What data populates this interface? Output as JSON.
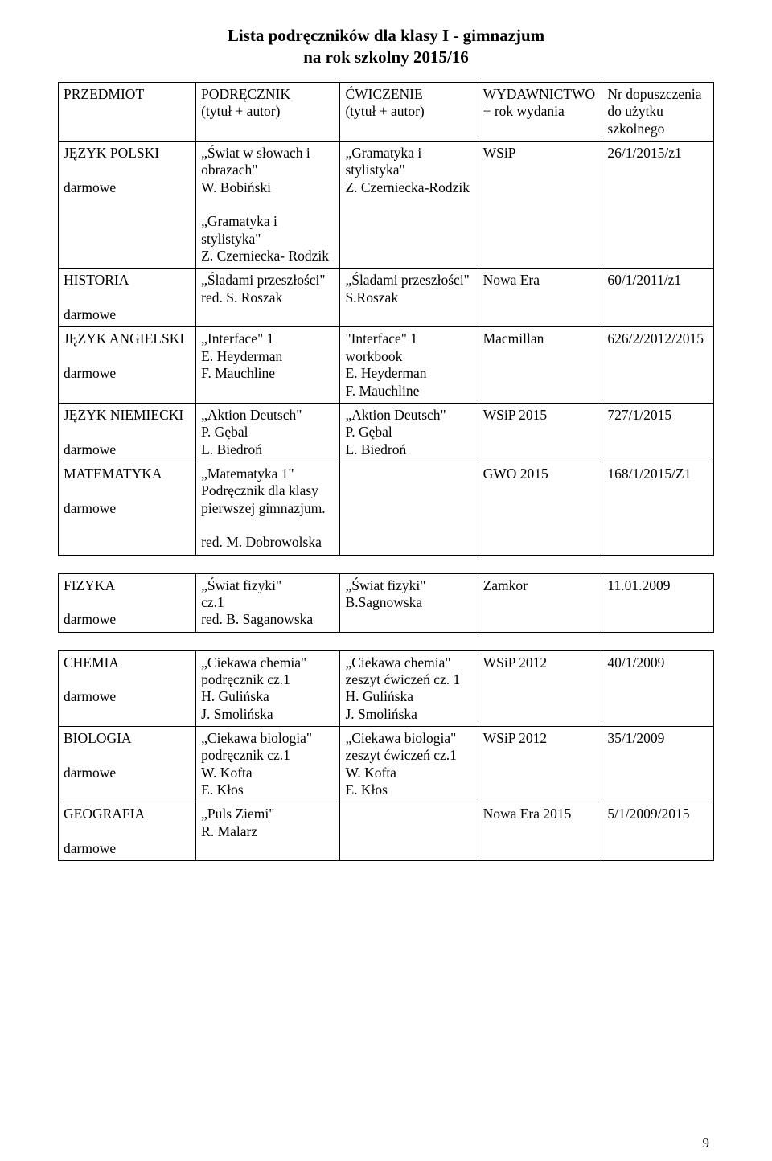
{
  "title": "Lista podręczników dla klasy I - gimnazjum",
  "subtitle": "na rok szkolny 2015/16",
  "page_number": "9",
  "headers": {
    "subject": "PRZEDMIOT",
    "textbook": "PODRĘCZNIK\n(tytuł + autor)",
    "workbook": "ĆWICZENIE\n(tytuł + autor)",
    "publisher": "WYDAWNICTWO\n+ rok wydania",
    "approval": "Nr dopuszczenia\ndo użytku\nszkolnego"
  },
  "rows": {
    "polski": {
      "subject": "JĘZYK POLSKI\n\ndarmowe",
      "textbook": "„Świat w słowach i obrazach\"\nW. Bobiński\n\n„Gramatyka i stylistyka\"\nZ. Czerniecka- Rodzik",
      "workbook": "„Gramatyka i stylistyka\"\nZ. Czerniecka-Rodzik",
      "publisher": "WSiP",
      "approval": "26/1/2015/z1"
    },
    "historia": {
      "subject": "HISTORIA\n\ndarmowe",
      "textbook": "„Śladami przeszłości\"\nred. S. Roszak",
      "workbook": "„Śladami przeszłości\"\nS.Roszak",
      "publisher": "Nowa Era",
      "approval": "60/1/2011/z1"
    },
    "angielski": {
      "subject": "JĘZYK ANGIELSKI\n\ndarmowe",
      "textbook": "„Interface\" 1\nE. Heyderman\nF. Mauchline",
      "workbook": "\"Interface\" 1 workbook\nE. Heyderman\nF. Mauchline",
      "publisher": "Macmillan",
      "approval": "626/2/2012/2015"
    },
    "niemiecki": {
      "subject": "JĘZYK NIEMIECKI\n\ndarmowe",
      "textbook": "„Aktion Deutsch\"\nP. Gębal\nL. Biedroń",
      "workbook": "„Aktion Deutsch\"\nP. Gębal\nL. Biedroń",
      "publisher": "WSiP 2015",
      "approval": "727/1/2015"
    },
    "matematyka": {
      "subject": "MATEMATYKA\n\ndarmowe",
      "textbook": "„Matematyka 1\"\nPodręcznik dla klasy pierwszej gimnazjum.\n\nred. M. Dobrowolska",
      "workbook": "",
      "publisher": "GWO 2015",
      "approval": "168/1/2015/Z1"
    },
    "fizyka": {
      "subject": "FIZYKA\n\ndarmowe",
      "textbook": "„Świat fizyki\"\ncz.1\nred. B. Saganowska",
      "workbook": "„Świat fizyki\"\nB.Sagnowska",
      "publisher": "Zamkor",
      "approval": "11.01.2009"
    },
    "chemia": {
      "subject": "CHEMIA\n\ndarmowe",
      "textbook": "„Ciekawa chemia\"\npodręcznik cz.1\nH. Gulińska\nJ. Smolińska",
      "workbook": "„Ciekawa chemia\"\nzeszyt ćwiczeń cz. 1\nH. Gulińska\nJ. Smolińska",
      "publisher": "WSiP 2012",
      "approval": "40/1/2009"
    },
    "biologia": {
      "subject": "BIOLOGIA\n\ndarmowe",
      "textbook": "„Ciekawa biologia\"\npodręcznik cz.1\nW. Kofta\nE. Kłos",
      "workbook": "„Ciekawa biologia\"\nzeszyt ćwiczeń cz.1\nW. Kofta\nE. Kłos",
      "publisher": "WSiP 2012",
      "approval": "35/1/2009"
    },
    "geografia": {
      "subject": "GEOGRAFIA\n\ndarmowe",
      "textbook": "„Puls Ziemi\"\nR. Malarz",
      "workbook": "",
      "publisher": "Nowa Era 2015",
      "approval": "5/1/2009/2015"
    }
  }
}
